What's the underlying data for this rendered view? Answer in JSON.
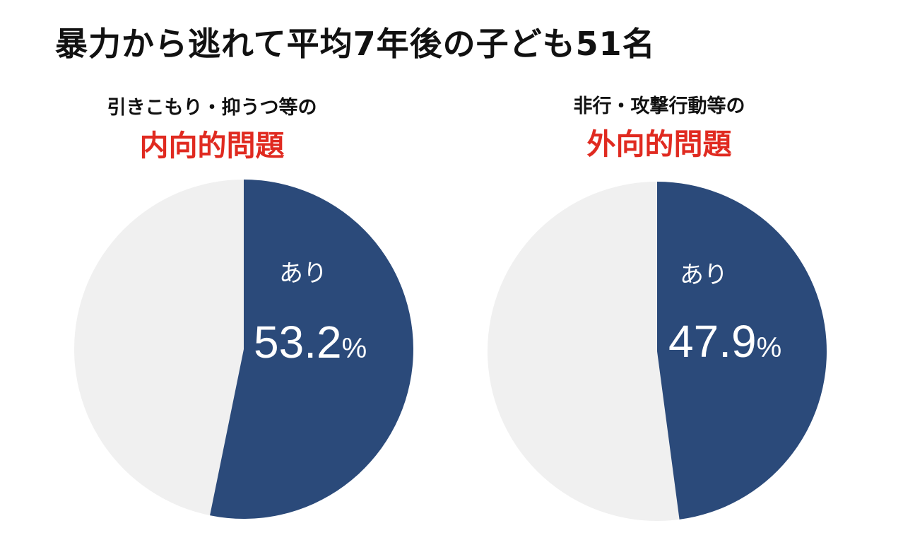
{
  "title": "暴力から逃れて平均7年後の子ども51名",
  "colors": {
    "filled": "#2b4a7a",
    "remainder": "#f0f0f0",
    "label": "#ffffff",
    "category": "#e02a20"
  },
  "chart_data": [
    {
      "type": "pie",
      "subtitle": "引きこもり・抑うつ等の",
      "category": "内向的問題",
      "slices": [
        {
          "label": "あり",
          "value": 53.2
        },
        {
          "label": "",
          "value": 46.8
        }
      ],
      "value_text": "53.2",
      "unit": "%"
    },
    {
      "type": "pie",
      "subtitle": "非行・攻撃行動等の",
      "category": "外向的問題",
      "slices": [
        {
          "label": "あり",
          "value": 47.9
        },
        {
          "label": "",
          "value": 52.1
        }
      ],
      "value_text": "47.9",
      "unit": "%"
    }
  ]
}
